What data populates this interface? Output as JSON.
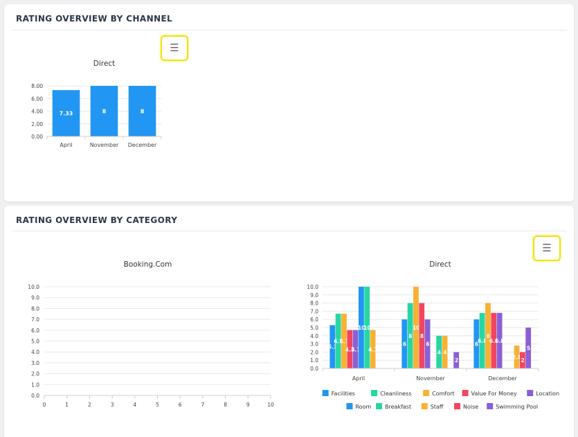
{
  "channel_section": {
    "title": "RATING OVERVIEW BY CHANNEL",
    "menu_icon": "hamburger-menu-icon"
  },
  "category_section": {
    "title": "RATING OVERVIEW BY CATEGORY",
    "menu_icon": "hamburger-menu-icon"
  },
  "colors": {
    "bar_blue": "#2196f3",
    "Facilities": "#2196f3",
    "Cleanliness": "#26d7a4",
    "Comfort": "#f7b234",
    "Value For Money": "#f2455f",
    "Location": "#8a5fd6",
    "Room": "#2196f3",
    "Breakfast": "#26d7a4",
    "Staff": "#f7b234",
    "Noise": "#f2455f",
    "Swimming Pool": "#8a5fd6"
  },
  "chart_data": [
    {
      "type": "bar",
      "title": "Direct",
      "categories": [
        "April",
        "November",
        "December"
      ],
      "values": [
        7.33,
        8,
        8
      ],
      "data_labels": [
        "7.33",
        "8",
        "8"
      ],
      "yticks": [
        "0.00",
        "2.00",
        "4.00",
        "6.00",
        "8.00"
      ],
      "ylim": [
        0,
        8
      ]
    },
    {
      "type": "line",
      "title": "Booking.Com",
      "xticks": [
        "0",
        "1",
        "2",
        "3",
        "4",
        "5",
        "6",
        "7",
        "8",
        "9",
        "10"
      ],
      "yticks": [
        "0.0",
        "1.0",
        "2.0",
        "3.0",
        "4.0",
        "5.0",
        "6.0",
        "7.0",
        "8.0",
        "9.0",
        "10.0"
      ],
      "xlim": [
        0,
        10
      ],
      "ylim": [
        0,
        10
      ],
      "series": []
    },
    {
      "type": "bar",
      "title": "Direct",
      "categories": [
        "April",
        "November",
        "December"
      ],
      "yticks": [
        "0.0",
        "1.0",
        "2.0",
        "3.0",
        "4.0",
        "5.0",
        "6.0",
        "7.0",
        "8.0",
        "9.0",
        "10.0"
      ],
      "ylim": [
        0,
        10
      ],
      "legend_position": "bottom",
      "series": [
        {
          "name": "Facilities",
          "values": [
            5.3,
            6,
            6
          ],
          "labels": [
            "5.3",
            "6",
            "6"
          ]
        },
        {
          "name": "Cleanliness",
          "values": [
            6.7,
            8,
            6.8
          ],
          "labels": [
            "6.7",
            "8",
            "6.8"
          ]
        },
        {
          "name": "Comfort",
          "values": [
            6.7,
            10,
            8
          ],
          "labels": [
            "6.7",
            "10",
            "8"
          ]
        },
        {
          "name": "Value For Money",
          "values": [
            4.7,
            8,
            6.8
          ],
          "labels": [
            "4.7",
            "8",
            "6.8"
          ]
        },
        {
          "name": "Location",
          "values": [
            4.7,
            6,
            6.8
          ],
          "labels": [
            "4.7",
            "6",
            "6.8"
          ]
        },
        {
          "name": "Room",
          "values": [
            10,
            0,
            0
          ],
          "labels": [
            "10",
            "",
            ""
          ]
        },
        {
          "name": "Breakfast",
          "values": [
            10,
            4,
            0
          ],
          "labels": [
            "10",
            "4",
            ""
          ]
        },
        {
          "name": "Staff",
          "values": [
            4.7,
            4,
            2.8
          ],
          "labels": [
            "4.7",
            "4",
            "2.8"
          ]
        },
        {
          "name": "Noise",
          "values": [
            0,
            0,
            2
          ],
          "labels": [
            "",
            "",
            "2"
          ]
        },
        {
          "name": "Swimming Pool",
          "values": [
            0,
            2,
            5
          ],
          "labels": [
            "",
            "2",
            "5"
          ]
        }
      ]
    }
  ]
}
